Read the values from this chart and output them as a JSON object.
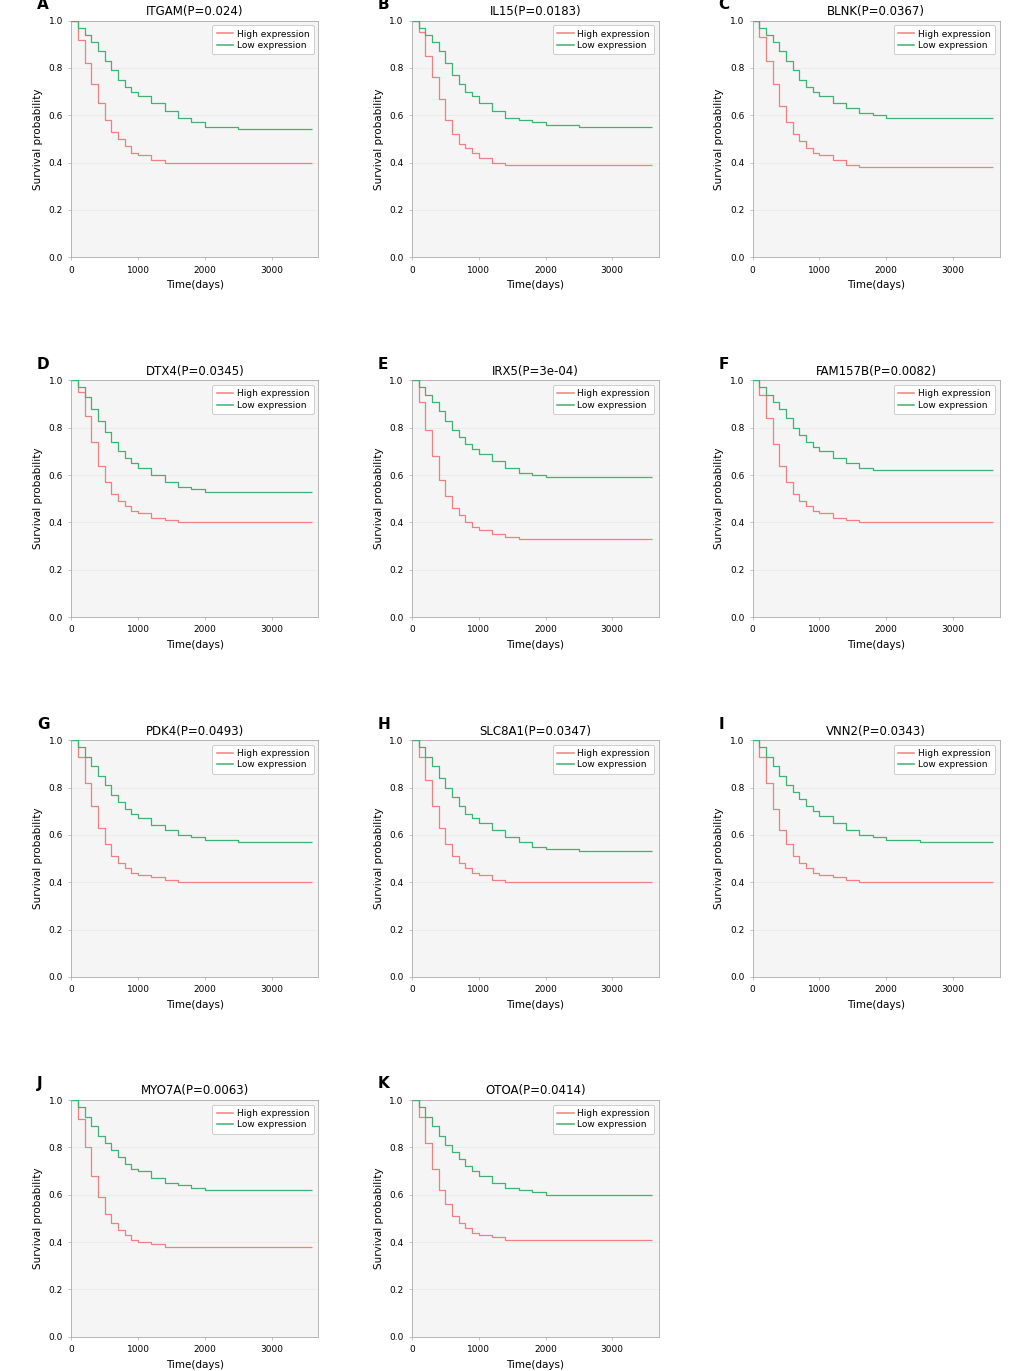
{
  "panels": [
    {
      "label": "A",
      "title": "ITGAM(P=0.024)",
      "high": {
        "times": [
          0,
          100,
          200,
          300,
          400,
          500,
          600,
          700,
          800,
          900,
          1000,
          1200,
          1400,
          1600,
          1800,
          2000,
          2500,
          3000,
          3500,
          3600
        ],
        "surv": [
          1.0,
          0.92,
          0.82,
          0.73,
          0.65,
          0.58,
          0.53,
          0.5,
          0.47,
          0.44,
          0.43,
          0.41,
          0.4,
          0.4,
          0.4,
          0.4,
          0.4,
          0.4,
          0.4,
          0.4
        ]
      },
      "low": {
        "times": [
          0,
          100,
          200,
          300,
          400,
          500,
          600,
          700,
          800,
          900,
          1000,
          1200,
          1400,
          1600,
          1800,
          2000,
          2500,
          3000,
          3500,
          3600
        ],
        "surv": [
          1.0,
          0.97,
          0.94,
          0.91,
          0.87,
          0.83,
          0.79,
          0.75,
          0.72,
          0.7,
          0.68,
          0.65,
          0.62,
          0.59,
          0.57,
          0.55,
          0.54,
          0.54,
          0.54,
          0.54
        ]
      }
    },
    {
      "label": "B",
      "title": "IL15(P=0.0183)",
      "high": {
        "times": [
          0,
          100,
          200,
          300,
          400,
          500,
          600,
          700,
          800,
          900,
          1000,
          1200,
          1400,
          1600,
          1800,
          2000,
          2500,
          3000,
          3500,
          3600
        ],
        "surv": [
          1.0,
          0.95,
          0.85,
          0.76,
          0.67,
          0.58,
          0.52,
          0.48,
          0.46,
          0.44,
          0.42,
          0.4,
          0.39,
          0.39,
          0.39,
          0.39,
          0.39,
          0.39,
          0.39,
          0.39
        ]
      },
      "low": {
        "times": [
          0,
          100,
          200,
          300,
          400,
          500,
          600,
          700,
          800,
          900,
          1000,
          1200,
          1400,
          1600,
          1800,
          2000,
          2500,
          3000,
          3500,
          3600
        ],
        "surv": [
          1.0,
          0.97,
          0.94,
          0.91,
          0.87,
          0.82,
          0.77,
          0.73,
          0.7,
          0.68,
          0.65,
          0.62,
          0.59,
          0.58,
          0.57,
          0.56,
          0.55,
          0.55,
          0.55,
          0.55
        ]
      }
    },
    {
      "label": "C",
      "title": "BLNK(P=0.0367)",
      "high": {
        "times": [
          0,
          100,
          200,
          300,
          400,
          500,
          600,
          700,
          800,
          900,
          1000,
          1200,
          1400,
          1600,
          1800,
          2000,
          2500,
          3000,
          3500,
          3600
        ],
        "surv": [
          1.0,
          0.93,
          0.83,
          0.73,
          0.64,
          0.57,
          0.52,
          0.49,
          0.46,
          0.44,
          0.43,
          0.41,
          0.39,
          0.38,
          0.38,
          0.38,
          0.38,
          0.38,
          0.38,
          0.38
        ]
      },
      "low": {
        "times": [
          0,
          100,
          200,
          300,
          400,
          500,
          600,
          700,
          800,
          900,
          1000,
          1200,
          1400,
          1600,
          1800,
          2000,
          2500,
          3000,
          3500,
          3600
        ],
        "surv": [
          1.0,
          0.97,
          0.94,
          0.91,
          0.87,
          0.83,
          0.79,
          0.75,
          0.72,
          0.7,
          0.68,
          0.65,
          0.63,
          0.61,
          0.6,
          0.59,
          0.59,
          0.59,
          0.59,
          0.59
        ]
      }
    },
    {
      "label": "D",
      "title": "DTX4(P=0.0345)",
      "high": {
        "times": [
          0,
          100,
          200,
          300,
          400,
          500,
          600,
          700,
          800,
          900,
          1000,
          1200,
          1400,
          1600,
          1800,
          2000,
          2500,
          3000,
          3500,
          3600
        ],
        "surv": [
          1.0,
          0.95,
          0.85,
          0.74,
          0.64,
          0.57,
          0.52,
          0.49,
          0.47,
          0.45,
          0.44,
          0.42,
          0.41,
          0.4,
          0.4,
          0.4,
          0.4,
          0.4,
          0.4,
          0.4
        ]
      },
      "low": {
        "times": [
          0,
          100,
          200,
          300,
          400,
          500,
          600,
          700,
          800,
          900,
          1000,
          1200,
          1400,
          1600,
          1800,
          2000,
          2500,
          3000,
          3500,
          3600
        ],
        "surv": [
          1.0,
          0.97,
          0.93,
          0.88,
          0.83,
          0.78,
          0.74,
          0.7,
          0.67,
          0.65,
          0.63,
          0.6,
          0.57,
          0.55,
          0.54,
          0.53,
          0.53,
          0.53,
          0.53,
          0.53
        ]
      }
    },
    {
      "label": "E",
      "title": "IRX5(P=3e-04)",
      "high": {
        "times": [
          0,
          100,
          200,
          300,
          400,
          500,
          600,
          700,
          800,
          900,
          1000,
          1200,
          1400,
          1600,
          1800,
          2000,
          2500,
          3000,
          3500,
          3600
        ],
        "surv": [
          1.0,
          0.91,
          0.79,
          0.68,
          0.58,
          0.51,
          0.46,
          0.43,
          0.4,
          0.38,
          0.37,
          0.35,
          0.34,
          0.33,
          0.33,
          0.33,
          0.33,
          0.33,
          0.33,
          0.33
        ]
      },
      "low": {
        "times": [
          0,
          100,
          200,
          300,
          400,
          500,
          600,
          700,
          800,
          900,
          1000,
          1200,
          1400,
          1600,
          1800,
          2000,
          2500,
          3000,
          3500,
          3600
        ],
        "surv": [
          1.0,
          0.97,
          0.94,
          0.91,
          0.87,
          0.83,
          0.79,
          0.76,
          0.73,
          0.71,
          0.69,
          0.66,
          0.63,
          0.61,
          0.6,
          0.59,
          0.59,
          0.59,
          0.59,
          0.59
        ]
      }
    },
    {
      "label": "F",
      "title": "FAM157B(P=0.0082)",
      "high": {
        "times": [
          0,
          100,
          200,
          300,
          400,
          500,
          600,
          700,
          800,
          900,
          1000,
          1200,
          1400,
          1600,
          1800,
          2000,
          2500,
          3000,
          3500,
          3600
        ],
        "surv": [
          1.0,
          0.94,
          0.84,
          0.73,
          0.64,
          0.57,
          0.52,
          0.49,
          0.47,
          0.45,
          0.44,
          0.42,
          0.41,
          0.4,
          0.4,
          0.4,
          0.4,
          0.4,
          0.4,
          0.4
        ]
      },
      "low": {
        "times": [
          0,
          100,
          200,
          300,
          400,
          500,
          600,
          700,
          800,
          900,
          1000,
          1200,
          1400,
          1600,
          1800,
          2000,
          2500,
          3000,
          3500,
          3600
        ],
        "surv": [
          1.0,
          0.97,
          0.94,
          0.91,
          0.88,
          0.84,
          0.8,
          0.77,
          0.74,
          0.72,
          0.7,
          0.67,
          0.65,
          0.63,
          0.62,
          0.62,
          0.62,
          0.62,
          0.62,
          0.62
        ]
      }
    },
    {
      "label": "G",
      "title": "PDK4(P=0.0493)",
      "high": {
        "times": [
          0,
          100,
          200,
          300,
          400,
          500,
          600,
          700,
          800,
          900,
          1000,
          1200,
          1400,
          1600,
          1800,
          2000,
          2500,
          3000,
          3500,
          3600
        ],
        "surv": [
          1.0,
          0.93,
          0.82,
          0.72,
          0.63,
          0.56,
          0.51,
          0.48,
          0.46,
          0.44,
          0.43,
          0.42,
          0.41,
          0.4,
          0.4,
          0.4,
          0.4,
          0.4,
          0.4,
          0.4
        ]
      },
      "low": {
        "times": [
          0,
          100,
          200,
          300,
          400,
          500,
          600,
          700,
          800,
          900,
          1000,
          1200,
          1400,
          1600,
          1800,
          2000,
          2500,
          3000,
          3500,
          3600
        ],
        "surv": [
          1.0,
          0.97,
          0.93,
          0.89,
          0.85,
          0.81,
          0.77,
          0.74,
          0.71,
          0.69,
          0.67,
          0.64,
          0.62,
          0.6,
          0.59,
          0.58,
          0.57,
          0.57,
          0.57,
          0.57
        ]
      }
    },
    {
      "label": "H",
      "title": "SLC8A1(P=0.0347)",
      "high": {
        "times": [
          0,
          100,
          200,
          300,
          400,
          500,
          600,
          700,
          800,
          900,
          1000,
          1200,
          1400,
          1600,
          1800,
          2000,
          2500,
          3000,
          3500,
          3600
        ],
        "surv": [
          1.0,
          0.93,
          0.83,
          0.72,
          0.63,
          0.56,
          0.51,
          0.48,
          0.46,
          0.44,
          0.43,
          0.41,
          0.4,
          0.4,
          0.4,
          0.4,
          0.4,
          0.4,
          0.4,
          0.4
        ]
      },
      "low": {
        "times": [
          0,
          100,
          200,
          300,
          400,
          500,
          600,
          700,
          800,
          900,
          1000,
          1200,
          1400,
          1600,
          1800,
          2000,
          2500,
          3000,
          3500,
          3600
        ],
        "surv": [
          1.0,
          0.97,
          0.93,
          0.89,
          0.84,
          0.8,
          0.76,
          0.72,
          0.69,
          0.67,
          0.65,
          0.62,
          0.59,
          0.57,
          0.55,
          0.54,
          0.53,
          0.53,
          0.53,
          0.53
        ]
      }
    },
    {
      "label": "I",
      "title": "VNN2(P=0.0343)",
      "high": {
        "times": [
          0,
          100,
          200,
          300,
          400,
          500,
          600,
          700,
          800,
          900,
          1000,
          1200,
          1400,
          1600,
          1800,
          2000,
          2500,
          3000,
          3500,
          3600
        ],
        "surv": [
          1.0,
          0.93,
          0.82,
          0.71,
          0.62,
          0.56,
          0.51,
          0.48,
          0.46,
          0.44,
          0.43,
          0.42,
          0.41,
          0.4,
          0.4,
          0.4,
          0.4,
          0.4,
          0.4,
          0.4
        ]
      },
      "low": {
        "times": [
          0,
          100,
          200,
          300,
          400,
          500,
          600,
          700,
          800,
          900,
          1000,
          1200,
          1400,
          1600,
          1800,
          2000,
          2500,
          3000,
          3500,
          3600
        ],
        "surv": [
          1.0,
          0.97,
          0.93,
          0.89,
          0.85,
          0.81,
          0.78,
          0.75,
          0.72,
          0.7,
          0.68,
          0.65,
          0.62,
          0.6,
          0.59,
          0.58,
          0.57,
          0.57,
          0.57,
          0.57
        ]
      }
    },
    {
      "label": "J",
      "title": "MYO7A(P=0.0063)",
      "high": {
        "times": [
          0,
          100,
          200,
          300,
          400,
          500,
          600,
          700,
          800,
          900,
          1000,
          1200,
          1400,
          1600,
          1800,
          2000,
          2500,
          3000,
          3500,
          3600
        ],
        "surv": [
          1.0,
          0.92,
          0.8,
          0.68,
          0.59,
          0.52,
          0.48,
          0.45,
          0.43,
          0.41,
          0.4,
          0.39,
          0.38,
          0.38,
          0.38,
          0.38,
          0.38,
          0.38,
          0.38,
          0.38
        ]
      },
      "low": {
        "times": [
          0,
          100,
          200,
          300,
          400,
          500,
          600,
          700,
          800,
          900,
          1000,
          1200,
          1400,
          1600,
          1800,
          2000,
          2500,
          3000,
          3500,
          3600
        ],
        "surv": [
          1.0,
          0.97,
          0.93,
          0.89,
          0.85,
          0.82,
          0.79,
          0.76,
          0.73,
          0.71,
          0.7,
          0.67,
          0.65,
          0.64,
          0.63,
          0.62,
          0.62,
          0.62,
          0.62,
          0.62
        ]
      }
    },
    {
      "label": "K",
      "title": "OTOA(P=0.0414)",
      "high": {
        "times": [
          0,
          100,
          200,
          300,
          400,
          500,
          600,
          700,
          800,
          900,
          1000,
          1200,
          1400,
          1600,
          1800,
          2000,
          2500,
          3000,
          3500,
          3600
        ],
        "surv": [
          1.0,
          0.93,
          0.82,
          0.71,
          0.62,
          0.56,
          0.51,
          0.48,
          0.46,
          0.44,
          0.43,
          0.42,
          0.41,
          0.41,
          0.41,
          0.41,
          0.41,
          0.41,
          0.41,
          0.41
        ]
      },
      "low": {
        "times": [
          0,
          100,
          200,
          300,
          400,
          500,
          600,
          700,
          800,
          900,
          1000,
          1200,
          1400,
          1600,
          1800,
          2000,
          2500,
          3000,
          3500,
          3600
        ],
        "surv": [
          1.0,
          0.97,
          0.93,
          0.89,
          0.85,
          0.81,
          0.78,
          0.75,
          0.72,
          0.7,
          0.68,
          0.65,
          0.63,
          0.62,
          0.61,
          0.6,
          0.6,
          0.6,
          0.6,
          0.6
        ]
      }
    }
  ],
  "high_color": "#F08080",
  "low_color": "#3CB371",
  "xlabel": "Time(days)",
  "ylabel": "Survival probability",
  "xlim": [
    0,
    3700
  ],
  "ylim": [
    0.0,
    1.0
  ],
  "xticks": [
    0,
    1000,
    2000,
    3000
  ],
  "yticks": [
    0.0,
    0.2,
    0.4,
    0.6,
    0.8,
    1.0
  ],
  "title_fontsize": 8.5,
  "label_fontsize": 7.5,
  "tick_fontsize": 6.5,
  "legend_fontsize": 6.5,
  "panel_label_fontsize": 11,
  "linewidth": 0.9,
  "bg_color": "#f5f5f5",
  "fig_bg": "#ffffff",
  "spine_color": "#aaaaaa",
  "grid_color": "#e8e8e8"
}
